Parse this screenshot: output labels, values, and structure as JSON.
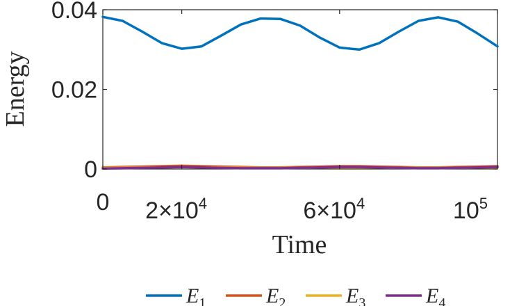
{
  "chart_data": {
    "type": "line",
    "xlabel": "Time",
    "ylabel": "Energy",
    "xlim": [
      0,
      100000
    ],
    "ylim": [
      0,
      0.04
    ],
    "x_ticks": [
      {
        "value": 0,
        "mantissa": "0",
        "exponent": ""
      },
      {
        "value": 20000,
        "mantissa": "2×10",
        "exponent": "4"
      },
      {
        "value": 60000,
        "mantissa": "6×10",
        "exponent": "4"
      },
      {
        "value": 100000,
        "mantissa": "10",
        "exponent": "5"
      }
    ],
    "y_ticks": [
      {
        "value": 0,
        "label": "0"
      },
      {
        "value": 0.02,
        "label": "0.02"
      },
      {
        "value": 0.04,
        "label": "0.04"
      }
    ],
    "grid": false,
    "legend_placement": "bottom",
    "x": [
      0,
      5000,
      10000,
      15000,
      20000,
      25000,
      30000,
      35000,
      40000,
      45000,
      50000,
      55000,
      60000,
      65000,
      70000,
      75000,
      80000,
      85000,
      90000,
      95000,
      100000
    ],
    "series": [
      {
        "name": "E",
        "subscript": "1",
        "color": "#0072BD",
        "values": [
          0.0382,
          0.0372,
          0.0345,
          0.0316,
          0.0302,
          0.0308,
          0.0335,
          0.0363,
          0.0378,
          0.0377,
          0.036,
          0.033,
          0.0305,
          0.03,
          0.0316,
          0.0345,
          0.0372,
          0.0381,
          0.037,
          0.034,
          0.0308
        ]
      },
      {
        "name": "E",
        "subscript": "2",
        "color": "#D95319",
        "values": [
          0.0004,
          0.0005,
          0.0006,
          0.0007,
          0.0008,
          0.0007,
          0.0006,
          0.0005,
          0.0004,
          0.0004,
          0.0005,
          0.0006,
          0.0007,
          0.0007,
          0.0006,
          0.0005,
          0.0004,
          0.0004,
          0.0005,
          0.0006,
          0.0007
        ]
      },
      {
        "name": "E",
        "subscript": "3",
        "color": "#EDB120",
        "values": [
          0.0003,
          0.0003,
          0.0004,
          0.0004,
          0.0005,
          0.0004,
          0.0004,
          0.0003,
          0.0003,
          0.0003,
          0.0003,
          0.0004,
          0.0004,
          0.0004,
          0.0004,
          0.0003,
          0.0003,
          0.0003,
          0.0003,
          0.0004,
          0.0004
        ]
      },
      {
        "name": "E",
        "subscript": "4",
        "color": "#7E2F8E",
        "values": [
          0.0001,
          0.0002,
          0.0003,
          0.0004,
          0.0005,
          0.0004,
          0.0003,
          0.0002,
          0.0002,
          0.0002,
          0.0003,
          0.0004,
          0.0005,
          0.0005,
          0.0004,
          0.0003,
          0.0002,
          0.0002,
          0.0003,
          0.0004,
          0.0005
        ]
      }
    ]
  }
}
